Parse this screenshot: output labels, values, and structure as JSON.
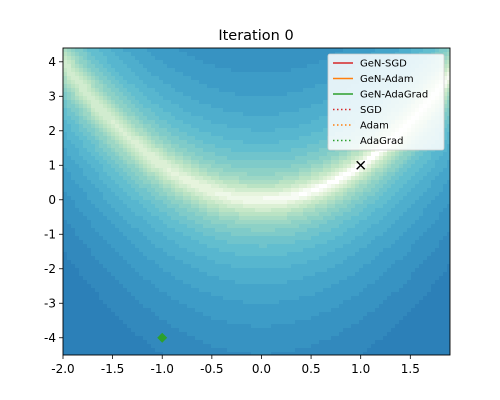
{
  "chart_data": {
    "type": "contour",
    "title": "Iteration 0",
    "xlabel": "",
    "ylabel": "",
    "xlim": [
      -2.0,
      1.9
    ],
    "ylim": [
      -4.5,
      4.4
    ],
    "x_ticks": [
      "-2.0",
      "-1.5",
      "-1.0",
      "-0.5",
      "0.0",
      "0.5",
      "1.0",
      "1.5"
    ],
    "x_tick_values": [
      -2.0,
      -1.5,
      -1.0,
      -0.5,
      0.0,
      0.5,
      1.0,
      1.5
    ],
    "y_ticks": [
      "-4",
      "-3",
      "-2",
      "-1",
      "0",
      "1",
      "2",
      "3",
      "4"
    ],
    "y_tick_values": [
      -4,
      -3,
      -2,
      -1,
      0,
      1,
      2,
      3,
      4
    ],
    "surface": "Rosenbrock-like valley along y = x^2",
    "colormap": [
      "#ffffff",
      "#e3f3d9",
      "#bfe5c4",
      "#8dd1c6",
      "#5dbcd0",
      "#3f9fc9",
      "#2c80b8"
    ],
    "grid": false,
    "legend_position": "top-right",
    "legend": [
      {
        "name": "GeN-SGD",
        "color": "#d62728",
        "style": "solid"
      },
      {
        "name": "GeN-Adam",
        "color": "#ff7f0e",
        "style": "solid"
      },
      {
        "name": "GeN-AdaGrad",
        "color": "#2ca02c",
        "style": "solid"
      },
      {
        "name": "SGD",
        "color": "#d62728",
        "style": "dotted"
      },
      {
        "name": "Adam",
        "color": "#ff7f0e",
        "style": "dotted"
      },
      {
        "name": "AdaGrad",
        "color": "#2ca02c",
        "style": "dotted"
      }
    ],
    "markers": [
      {
        "name": "optimum",
        "x": 1.0,
        "y": 1.0,
        "symbol": "x",
        "color": "#000000"
      },
      {
        "name": "start",
        "x": -1.0,
        "y": -4.0,
        "symbol": "diamond",
        "color": "#2ca02c"
      }
    ]
  }
}
